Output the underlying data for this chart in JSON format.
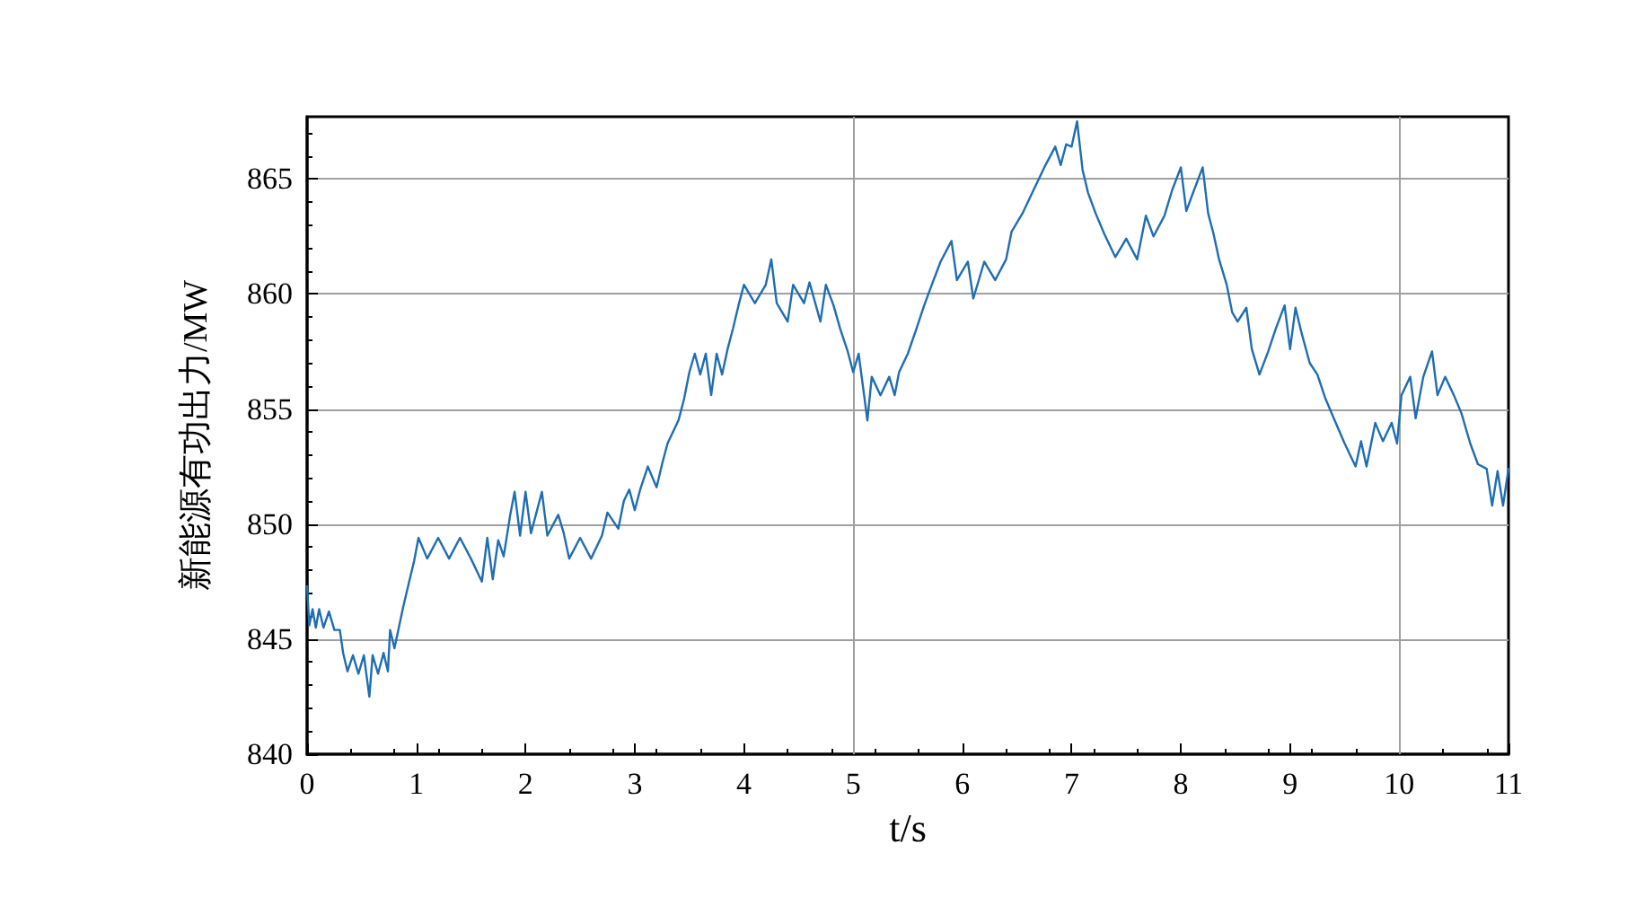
{
  "chart_data": {
    "type": "line",
    "xlabel": "t/s",
    "ylabel": "新能源有功出力/MW",
    "xlim": [
      0,
      11
    ],
    "xticks": [
      0,
      1,
      2,
      3,
      4,
      5,
      6,
      7,
      8,
      9,
      10,
      11
    ],
    "ylim": [
      840,
      867.7
    ],
    "yticks": [
      840,
      845,
      850,
      855,
      860,
      865
    ],
    "grid": "y",
    "marker": "none",
    "line_style": "solid",
    "ref_lines": [
      {
        "axis": "x",
        "value": 5,
        "color": "#a0a0a0"
      },
      {
        "axis": "x",
        "value": 10,
        "color": "#a0a0a0"
      }
    ],
    "series": [
      {
        "color": "#1f6db3",
        "x": [
          0,
          0.02,
          0.05,
          0.08,
          0.11,
          0.15,
          0.2,
          0.25,
          0.3,
          0.33,
          0.37,
          0.42,
          0.47,
          0.52,
          0.57,
          0.6,
          0.65,
          0.7,
          0.74,
          0.76,
          0.8,
          0.84,
          0.88,
          0.93,
          0.98,
          1.02,
          1.1,
          1.2,
          1.3,
          1.4,
          1.5,
          1.6,
          1.65,
          1.7,
          1.75,
          1.8,
          1.86,
          1.9,
          1.95,
          2.0,
          2.05,
          2.1,
          2.15,
          2.2,
          2.3,
          2.35,
          2.4,
          2.5,
          2.6,
          2.7,
          2.75,
          2.85,
          2.9,
          2.95,
          3.0,
          3.05,
          3.12,
          3.2,
          3.25,
          3.3,
          3.4,
          3.45,
          3.5,
          3.55,
          3.6,
          3.65,
          3.7,
          3.75,
          3.8,
          3.85,
          3.9,
          3.95,
          4.0,
          4.1,
          4.2,
          4.25,
          4.3,
          4.4,
          4.45,
          4.55,
          4.6,
          4.7,
          4.75,
          4.82,
          4.88,
          4.95,
          5.0,
          5.05,
          5.1,
          5.13,
          5.17,
          5.25,
          5.33,
          5.38,
          5.42,
          5.5,
          5.58,
          5.65,
          5.72,
          5.8,
          5.9,
          5.95,
          6.05,
          6.1,
          6.2,
          6.3,
          6.4,
          6.45,
          6.55,
          6.65,
          6.75,
          6.85,
          6.9,
          6.95,
          7.0,
          7.05,
          7.1,
          7.15,
          7.22,
          7.3,
          7.4,
          7.5,
          7.6,
          7.68,
          7.75,
          7.85,
          7.92,
          8.0,
          8.05,
          8.12,
          8.2,
          8.25,
          8.3,
          8.35,
          8.42,
          8.47,
          8.52,
          8.6,
          8.65,
          8.72,
          8.8,
          8.87,
          8.95,
          9.0,
          9.05,
          9.1,
          9.18,
          9.25,
          9.32,
          9.4,
          9.5,
          9.6,
          9.65,
          9.7,
          9.78,
          9.85,
          9.93,
          9.98,
          10.02,
          10.1,
          10.15,
          10.22,
          10.3,
          10.35,
          10.42,
          10.5,
          10.57,
          10.65,
          10.72,
          10.8,
          10.85,
          10.9,
          10.95,
          11.0
        ],
        "values": [
          847.3,
          845.6,
          846.3,
          845.5,
          846.3,
          845.5,
          846.2,
          845.4,
          845.4,
          844.4,
          843.6,
          844.3,
          843.5,
          844.3,
          842.5,
          844.3,
          843.5,
          844.4,
          843.6,
          845.4,
          844.6,
          845.5,
          846.4,
          847.4,
          848.4,
          849.4,
          848.5,
          849.4,
          848.5,
          849.4,
          848.5,
          847.5,
          849.4,
          847.6,
          849.3,
          848.6,
          850.4,
          851.4,
          849.5,
          851.4,
          849.6,
          850.5,
          851.4,
          849.5,
          850.4,
          849.6,
          848.5,
          849.4,
          848.5,
          849.5,
          850.5,
          849.8,
          851.0,
          851.5,
          850.6,
          851.5,
          852.5,
          851.6,
          852.6,
          853.5,
          854.5,
          855.4,
          856.6,
          857.4,
          856.5,
          857.4,
          855.6,
          857.4,
          856.5,
          857.6,
          858.5,
          859.5,
          860.4,
          859.6,
          860.4,
          861.5,
          859.6,
          858.8,
          860.4,
          859.6,
          860.5,
          858.8,
          860.4,
          859.5,
          858.5,
          857.5,
          856.6,
          857.4,
          855.6,
          854.5,
          856.4,
          855.6,
          856.4,
          855.6,
          856.6,
          857.4,
          858.5,
          859.5,
          860.4,
          861.4,
          862.3,
          860.6,
          861.4,
          859.8,
          861.4,
          860.6,
          861.5,
          862.7,
          863.5,
          864.5,
          865.5,
          866.4,
          865.6,
          866.5,
          866.4,
          867.5,
          865.4,
          864.4,
          863.5,
          862.6,
          861.6,
          862.4,
          861.5,
          863.4,
          862.5,
          863.4,
          864.5,
          865.5,
          863.6,
          864.5,
          865.5,
          863.5,
          862.6,
          861.5,
          860.4,
          859.2,
          858.8,
          859.4,
          857.6,
          856.5,
          857.5,
          858.5,
          859.5,
          857.6,
          859.4,
          858.4,
          857.0,
          856.5,
          855.5,
          854.6,
          853.5,
          852.5,
          853.6,
          852.5,
          854.4,
          853.6,
          854.4,
          853.5,
          855.6,
          856.4,
          854.6,
          856.4,
          857.5,
          855.6,
          856.4,
          855.6,
          854.8,
          853.5,
          852.6,
          852.4,
          850.8,
          852.3,
          850.8,
          852.4
        ]
      }
    ]
  }
}
